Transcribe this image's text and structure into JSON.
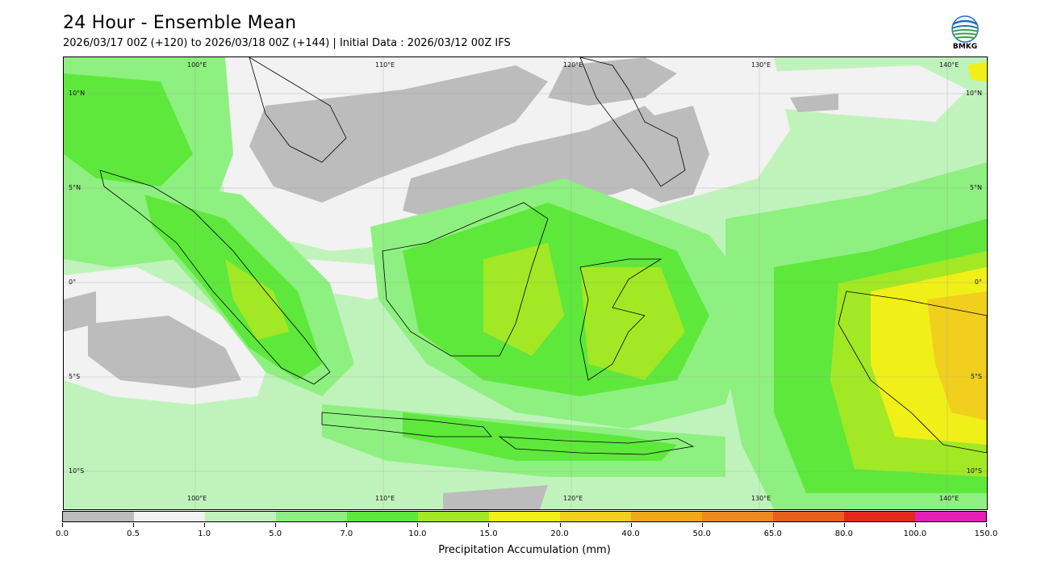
{
  "header": {
    "title": "24 Hour - Ensemble Mean",
    "subtitle": "2026/03/17 00Z (+120) to 2026/03/18 00Z (+144) | Initial Data : 2026/03/12 00Z IFS"
  },
  "logo": {
    "text": "BMKG"
  },
  "map": {
    "lon_labels": [
      "100°E",
      "110°E",
      "120°E",
      "130°E",
      "140°E"
    ],
    "lat_labels": [
      "10°N",
      "5°N",
      "0°",
      "5°S",
      "10°S"
    ],
    "grid": true
  },
  "colorbar": {
    "label": "Precipitation Accumulation (mm)",
    "ticks": [
      "0.0",
      "0.5",
      "1.0",
      "5.0",
      "7.0",
      "10.0",
      "15.0",
      "20.0",
      "40.0",
      "50.0",
      "65.0",
      "80.0",
      "100.0",
      "150.0"
    ],
    "colors": [
      "#bcbcbc",
      "#f2f2f2",
      "#c0f3bb",
      "#8ef080",
      "#5de83b",
      "#a2e825",
      "#f0ef18",
      "#f0cf1d",
      "#f0a819",
      "#ef8a1f",
      "#e8601e",
      "#e32a1a",
      "#e41fb8"
    ]
  }
}
